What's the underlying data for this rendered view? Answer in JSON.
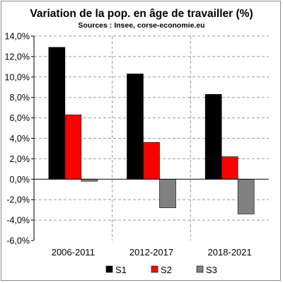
{
  "chart_data": {
    "type": "bar",
    "title": "Variation de la pop. en âge de travailler (%)",
    "subtitle": "Sources : Insee, corse-economie.eu",
    "xlabel": "",
    "ylabel": "",
    "categories": [
      "2006-2011",
      "2012-2017",
      "2018-2021"
    ],
    "series": [
      {
        "name": "S1",
        "color": "#000000",
        "values": [
          12.9,
          10.3,
          8.3
        ]
      },
      {
        "name": "S2",
        "color": "#ff0000",
        "values": [
          6.3,
          3.6,
          2.2
        ]
      },
      {
        "name": "S3",
        "color": "#808080",
        "values": [
          -0.2,
          -2.8,
          -3.4
        ]
      }
    ],
    "ylim": [
      -6,
      14
    ],
    "ytick_step": 2,
    "ytick_labels": [
      "14,0%",
      "12,0%",
      "10,0%",
      "8,0%",
      "6,0%",
      "4,0%",
      "2,0%",
      "0,0%",
      "-2,0%",
      "-4,0%",
      "-6,0%"
    ],
    "grid": true,
    "grid_style": "dashed",
    "legend_position": "bottom"
  }
}
